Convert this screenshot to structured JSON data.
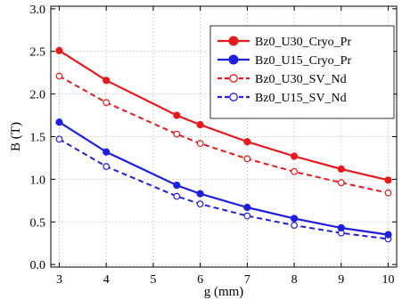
{
  "chart_data": {
    "type": "line",
    "title": "",
    "xlabel": "g  (mm)",
    "ylabel": "B (T)",
    "xlim": [
      2.82,
      10.18
    ],
    "ylim": [
      -0.03,
      3.03
    ],
    "xticks": [
      3,
      4,
      5,
      6,
      7,
      8,
      9,
      10
    ],
    "yticks": [
      0.0,
      0.5,
      1.0,
      1.5,
      2.0,
      2.5,
      3.0
    ],
    "xtick_labels": [
      "3",
      "4",
      "5",
      "6",
      "7",
      "8",
      "9",
      "10"
    ],
    "ytick_labels": [
      "0.0",
      "0.5",
      "1.0",
      "1.5",
      "2.0",
      "2.5",
      "3.0"
    ],
    "grid": true,
    "legend_position": "top-right",
    "x": [
      3,
      4,
      5.5,
      6,
      7,
      8,
      9,
      10
    ],
    "series": [
      {
        "name": "Bz0_U30_Cryo_Pr",
        "color": "#e8191c",
        "style": "solid",
        "marker": "filled-circle",
        "values": [
          2.51,
          2.16,
          1.75,
          1.64,
          1.44,
          1.27,
          1.12,
          0.99
        ]
      },
      {
        "name": "Bz0_U15_Cryo_Pr",
        "color": "#1f1fe0",
        "style": "solid",
        "marker": "filled-circle",
        "values": [
          1.67,
          1.32,
          0.93,
          0.83,
          0.67,
          0.54,
          0.43,
          0.35
        ]
      },
      {
        "name": "Bz0_U30_SV_Nd",
        "color": "#e8191c",
        "style": "dashed",
        "marker": "open-circle",
        "values": [
          2.21,
          1.9,
          1.53,
          1.42,
          1.24,
          1.09,
          0.96,
          0.84
        ]
      },
      {
        "name": "Bz0_U15_SV_Nd",
        "color": "#1f1fe0",
        "style": "dashed",
        "marker": "open-circle",
        "values": [
          1.47,
          1.15,
          0.8,
          0.71,
          0.57,
          0.46,
          0.37,
          0.3
        ]
      }
    ]
  }
}
